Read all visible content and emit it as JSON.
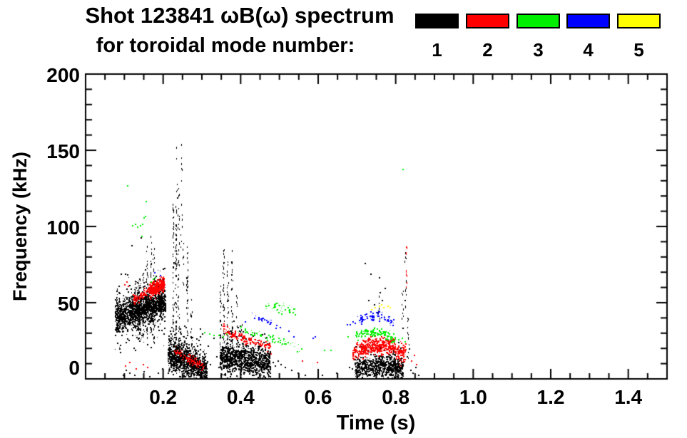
{
  "figure": {
    "title_line1": "Shot 123841 ωB(ω) spectrum",
    "title_line2": "for toroidal mode number:",
    "background": "#ffffff"
  },
  "legend": {
    "items": [
      {
        "label": "1",
        "color": "#000000"
      },
      {
        "label": "2",
        "color": "#ff0000"
      },
      {
        "label": "3",
        "color": "#00ee00"
      },
      {
        "label": "4",
        "color": "#0000ff"
      },
      {
        "label": "5",
        "color": "#ffff00"
      }
    ]
  },
  "chart_data": {
    "type": "scatter",
    "title": "Shot 123841 ωB(ω) spectrum",
    "subtitle": "for toroidal mode number:",
    "xlabel": "Time (s)",
    "ylabel": "Frequency (kHz)",
    "xlim": [
      0,
      1.5
    ],
    "ylim": [
      0,
      200
    ],
    "grid": false,
    "legend_position": "top-right",
    "x_major_ticks": [
      0.2,
      0.4,
      0.6,
      0.8,
      1.0,
      1.2,
      1.4
    ],
    "x_tick_labels": [
      "0.2",
      "0.4",
      "0.6",
      "0.8",
      "1.0",
      "1.2",
      "1.4"
    ],
    "x_minor_step": 0.05,
    "y_major_ticks": [
      0,
      50,
      100,
      150,
      200
    ],
    "y_tick_labels": [
      "0",
      "50",
      "100",
      "150",
      "200"
    ],
    "y_minor_step": 10,
    "series": [
      {
        "name": "n=1",
        "label": "1",
        "color": "#000000",
        "clusters": [
          {
            "kind": "band",
            "t": [
              0.075,
              0.205
            ],
            "f": [
              40,
              51
            ],
            "spread": 4,
            "n": 1500,
            "hair": 0.3,
            "hairmul": 2.6
          },
          {
            "kind": "rstreaks",
            "t": [
              0.08,
              0.205
            ],
            "f": [
              40,
              51
            ],
            "count": 26,
            "ext": [
              6,
              24
            ]
          },
          {
            "kind": "streaks",
            "items": [
              [
                0.133,
                30,
                62,
                1
              ],
              [
                0.148,
                28,
                70,
                1
              ],
              [
                0.158,
                27,
                90,
                1
              ],
              [
                0.168,
                30,
                94,
                1
              ],
              [
                0.175,
                24,
                86,
                1
              ]
            ]
          },
          {
            "kind": "streaks",
            "items": [
              [
                0.2255,
                8,
                118,
                0.9
              ],
              [
                0.2325,
                4,
                95,
                1.5
              ],
              [
                0.2335,
                95,
                161,
                0.4
              ],
              [
                0.2395,
                6,
                128,
                0.7
              ],
              [
                0.2465,
                86,
                160,
                0.35
              ],
              [
                0.252,
                60,
                90,
                0.5
              ],
              [
                0.262,
                4,
                88,
                1
              ],
              [
                0.272,
                4,
                55,
                0.8
              ]
            ]
          },
          {
            "kind": "band",
            "t": [
              0.212,
              0.312
            ],
            "f": [
              17,
              6
            ],
            "spread": 4.5,
            "n": 1100,
            "hair": 0.25,
            "hairmul": 2.2
          },
          {
            "kind": "dots",
            "points": [
              [
                0.232,
                33
              ],
              [
                0.245,
                30
              ],
              [
                0.258,
                34
              ],
              [
                0.27,
                28
              ],
              [
                0.295,
                33
              ],
              [
                0.3,
                30
              ],
              [
                0.315,
                22
              ],
              [
                0.321,
                10
              ],
              [
                0.329,
                27
              ],
              [
                0.336,
                15
              ],
              [
                0.342,
                8
              ]
            ]
          },
          {
            "kind": "band",
            "t": [
              0.345,
              0.475
            ],
            "f": [
              15,
              10
            ],
            "spread": 4,
            "n": 1150,
            "hair": 0.25,
            "hairmul": 2.3
          },
          {
            "kind": "streaks",
            "items": [
              [
                0.3475,
                6,
                62,
                1
              ],
              [
                0.356,
                5,
                87,
                1
              ],
              [
                0.3655,
                5,
                79,
                1
              ],
              [
                0.3775,
                5,
                85,
                1
              ],
              [
                0.39,
                5,
                56,
                0.8
              ],
              [
                0.401,
                6,
                38,
                0.8
              ],
              [
                0.413,
                8,
                30,
                0.7
              ]
            ]
          },
          {
            "kind": "dots",
            "points": [
              [
                0.482,
                11
              ],
              [
                0.488,
                9
              ],
              [
                0.495,
                12
              ],
              [
                0.503,
                10
              ],
              [
                0.513,
                8
              ],
              [
                0.53,
                6
              ],
              [
                0.547,
                4
              ],
              [
                0.565,
                3
              ],
              [
                0.61,
                3
              ],
              [
                0.646,
                4
              ]
            ]
          },
          {
            "kind": "band",
            "t": [
              0.693,
              0.818
            ],
            "f": [
              7,
              7
            ],
            "arch": 2,
            "spread": 3.2,
            "n": 820,
            "hair": 0.25,
            "hairmul": 2.0
          },
          {
            "kind": "dots",
            "points": [
              [
                0.68,
                8
              ],
              [
                0.687,
                7
              ],
              [
                0.72,
                76
              ],
              [
                0.729,
                52
              ],
              [
                0.735,
                69
              ],
              [
                0.742,
                41
              ],
              [
                0.744,
                49
              ],
              [
                0.752,
                44
              ],
              [
                0.756,
                67
              ],
              [
                0.758,
                57
              ],
              [
                0.764,
                52
              ],
              [
                0.771,
                60
              ]
            ]
          },
          {
            "kind": "streaks",
            "items": [
              [
                0.756,
                40,
                56,
                0.8
              ],
              [
                0.818,
                28,
                60,
                0.6
              ],
              [
                0.8245,
                45,
                88,
                0.6
              ],
              [
                0.831,
                8,
                42,
                0.6
              ]
            ]
          },
          {
            "kind": "dots",
            "points": [
              [
                0.828,
                15
              ],
              [
                0.834,
                20
              ],
              [
                0.838,
                6
              ],
              [
                0.843,
                4
              ],
              [
                0.851,
                8
              ],
              [
                0.857,
                3
              ]
            ]
          },
          {
            "kind": "dots",
            "points": [
              [
                0.095,
                3
              ],
              [
                0.103,
                6
              ],
              [
                0.112,
                4
              ],
              [
                0.118,
                88
              ],
              [
                0.126,
                3
              ],
              [
                0.142,
                93
              ],
              [
                0.149,
                5
              ],
              [
                0.163,
                2
              ],
              [
                0.186,
                4
              ],
              [
                0.197,
                7
              ]
            ]
          }
        ]
      },
      {
        "name": "n=2",
        "label": "2",
        "color": "#ff0000",
        "clusters": [
          {
            "kind": "dots",
            "points": [
              [
                0.1,
                62
              ],
              [
                0.104,
                64
              ],
              [
                0.109,
                61
              ]
            ]
          },
          {
            "kind": "band",
            "t": [
              0.122,
              0.165
            ],
            "f": [
              52,
              58
            ],
            "spread": 1.4,
            "n": 80
          },
          {
            "kind": "band",
            "t": [
              0.162,
              0.202
            ],
            "f": [
              58,
              63
            ],
            "spread": 2.4,
            "n": 330
          },
          {
            "kind": "band",
            "t": [
              0.2275,
              0.305
            ],
            "f": [
              19,
              8
            ],
            "spread": 1.4,
            "n": 110
          },
          {
            "kind": "band",
            "t": [
              0.353,
              0.475
            ],
            "f": [
              35,
              22
            ],
            "spread": 1.4,
            "n": 160,
            "curve": 0.55
          },
          {
            "kind": "dots",
            "points": [
              [
                0.468,
                18
              ],
              [
                0.477,
                17
              ],
              [
                0.558,
                12
              ],
              [
                0.596,
                11
              ]
            ]
          },
          {
            "kind": "band",
            "t": [
              0.688,
              0.824
            ],
            "f": [
              17,
              17
            ],
            "arch": 6,
            "spread": 2.6,
            "n": 540
          },
          {
            "kind": "streaks",
            "items": [
              [
                0.812,
                8,
                20,
                0.8
              ],
              [
                0.8185,
                10,
                22,
                0.8
              ],
              [
                0.827,
                60,
                87,
                0.7
              ]
            ]
          },
          {
            "kind": "dots",
            "points": [
              [
                0.827,
                87
              ],
              [
                0.84,
                12
              ],
              [
                0.846,
                16
              ],
              [
                0.852,
                10
              ],
              [
                0.102,
                9
              ],
              [
                0.112,
                11
              ],
              [
                0.128,
                7
              ],
              [
                0.147,
                10
              ],
              [
                0.158,
                8
              ]
            ]
          }
        ]
      },
      {
        "name": "n=3",
        "label": "3",
        "color": "#00ee00",
        "clusters": [
          {
            "kind": "dots",
            "points": [
              [
                0.107,
                127
              ],
              [
                0.12,
                101
              ],
              [
                0.127,
                102
              ],
              [
                0.133,
                100
              ],
              [
                0.139,
                101
              ],
              [
                0.143,
                94
              ],
              [
                0.146,
                102
              ],
              [
                0.149,
                106
              ],
              [
                0.153,
                107
              ],
              [
                0.155,
                117
              ]
            ]
          },
          {
            "kind": "dots",
            "points": [
              [
                0.168,
                64
              ],
              [
                0.173,
                66
              ],
              [
                0.179,
                67
              ]
            ]
          },
          {
            "kind": "dots",
            "points": [
              [
                0.305,
                31
              ],
              [
                0.318,
                30
              ],
              [
                0.33,
                29
              ],
              [
                0.342,
                29
              ],
              [
                0.354,
                28
              ],
              [
                0.362,
                30
              ]
            ]
          },
          {
            "kind": "band",
            "t": [
              0.39,
              0.55
            ],
            "f": [
              34,
              21
            ],
            "spread": 1.2,
            "n": 55
          },
          {
            "kind": "band",
            "t": [
              0.455,
              0.545
            ],
            "f": [
              49,
              45
            ],
            "spread": 1.5,
            "n": 40
          },
          {
            "kind": "dots",
            "points": [
              [
                0.497,
                44
              ],
              [
                0.505,
                43
              ],
              [
                0.556,
                20
              ],
              [
                0.614,
                19
              ],
              [
                0.632,
                19
              ],
              [
                0.676,
                28
              ]
            ]
          },
          {
            "kind": "band",
            "t": [
              0.695,
              0.8
            ],
            "f": [
              28,
              26
            ],
            "arch": 4,
            "spread": 1.5,
            "n": 135
          },
          {
            "kind": "dots",
            "points": [
              [
                0.806,
                26
              ],
              [
                0.815,
                27
              ],
              [
                0.822,
                25
              ],
              [
                0.818,
                138
              ]
            ]
          }
        ]
      },
      {
        "name": "n=4",
        "label": "4",
        "color": "#0000ff",
        "clusters": [
          {
            "kind": "dots",
            "points": [
              [
                0.177,
                70
              ],
              [
                0.192,
                68
              ]
            ]
          },
          {
            "kind": "band",
            "t": [
              0.428,
              0.492
            ],
            "f": [
              43,
              35
            ],
            "spread": 1.0,
            "n": 26
          },
          {
            "kind": "dots",
            "points": [
              [
                0.41,
                38
              ],
              [
                0.5,
                34
              ],
              [
                0.522,
                32
              ],
              [
                0.535,
                28
              ],
              [
                0.585,
                27
              ],
              [
                0.59,
                28
              ]
            ]
          },
          {
            "kind": "band",
            "t": [
              0.7,
              0.795
            ],
            "f": [
              38,
              37
            ],
            "arch": 4,
            "spread": 1.7,
            "n": 78
          },
          {
            "kind": "dots",
            "points": [
              [
                0.673,
                36
              ],
              [
                0.681,
                36
              ],
              [
                0.688,
                38
              ],
              [
                0.694,
                37
              ]
            ]
          }
        ]
      },
      {
        "name": "n=5",
        "label": "5",
        "color": "#ffff00",
        "clusters": [
          {
            "kind": "dots",
            "points": [
              [
                0.737,
                46
              ],
              [
                0.746,
                47
              ],
              [
                0.757,
                48
              ],
              [
                0.762,
                49
              ],
              [
                0.768,
                47
              ],
              [
                0.779,
                48
              ],
              [
                0.784,
                47
              ]
            ]
          }
        ]
      }
    ]
  }
}
